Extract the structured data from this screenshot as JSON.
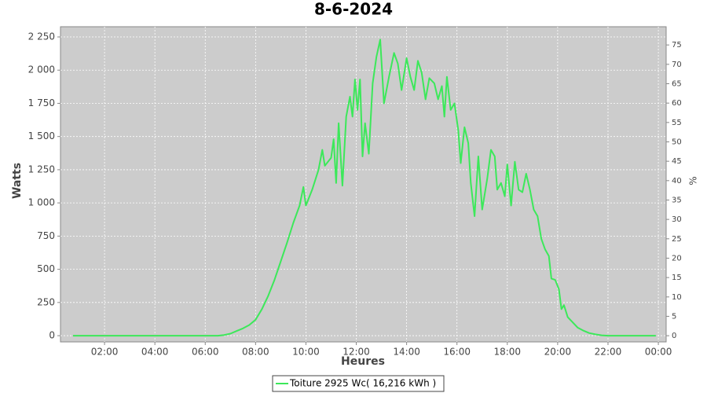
{
  "chart_data": {
    "type": "line",
    "title": "8-6-2024",
    "xlabel": "Heures",
    "ylabel": "Watts",
    "y2label": "%",
    "xlim": [
      0.25,
      24.31
    ],
    "xticks": [
      {
        "value": 2,
        "label": "02:00"
      },
      {
        "value": 4,
        "label": "04:00"
      },
      {
        "value": 6,
        "label": "06:00"
      },
      {
        "value": 8,
        "label": "08:00"
      },
      {
        "value": 10,
        "label": "10:00"
      },
      {
        "value": 12,
        "label": "12:00"
      },
      {
        "value": 14,
        "label": "14:00"
      },
      {
        "value": 16,
        "label": "16:00"
      },
      {
        "value": 18,
        "label": "18:00"
      },
      {
        "value": 20,
        "label": "20:00"
      },
      {
        "value": 22,
        "label": "22:00"
      },
      {
        "value": 24,
        "label": "00:00"
      }
    ],
    "ylim": [
      -47,
      2327
    ],
    "yticks": [
      0,
      250,
      500,
      750,
      {
        "value": 1000,
        "label": "1 000"
      },
      {
        "value": 1250,
        "label": "1 250"
      },
      {
        "value": 1500,
        "label": "1 500"
      },
      {
        "value": 1750,
        "label": "1 750"
      },
      {
        "value": 2000,
        "label": "2 000"
      },
      {
        "value": 2250,
        "label": "2 250"
      }
    ],
    "y2lim": [
      -1.6,
      79.7
    ],
    "y2ticks": [
      0,
      5,
      10,
      15,
      20,
      25,
      30,
      35,
      40,
      45,
      50,
      55,
      60,
      65,
      70,
      75
    ],
    "grid": true,
    "background": "#cccccc",
    "x": [
      0.75,
      2,
      4,
      6,
      6.5,
      6.75,
      7.0,
      7.25,
      7.5,
      7.75,
      8.0,
      8.25,
      8.5,
      8.75,
      9.0,
      9.25,
      9.5,
      9.75,
      9.9,
      10.0,
      10.25,
      10.5,
      10.65,
      10.75,
      11.0,
      11.1,
      11.2,
      11.3,
      11.45,
      11.6,
      11.75,
      11.85,
      11.95,
      12.05,
      12.15,
      12.25,
      12.35,
      12.5,
      12.65,
      12.8,
      12.95,
      13.1,
      13.3,
      13.5,
      13.65,
      13.8,
      14.0,
      14.15,
      14.3,
      14.45,
      14.6,
      14.75,
      14.9,
      15.1,
      15.25,
      15.4,
      15.5,
      15.6,
      15.75,
      15.9,
      16.05,
      16.15,
      16.3,
      16.45,
      16.55,
      16.7,
      16.85,
      17.0,
      17.2,
      17.35,
      17.5,
      17.6,
      17.75,
      17.9,
      18.0,
      18.15,
      18.3,
      18.45,
      18.6,
      18.75,
      18.9,
      19.05,
      19.2,
      19.35,
      19.5,
      19.65,
      19.75,
      19.9,
      20.05,
      20.15,
      20.25,
      20.4,
      20.6,
      20.8,
      21.0,
      21.25,
      21.5,
      21.75,
      22.0,
      22.5,
      23.9
    ],
    "series": [
      {
        "name": "Toiture 2925 Wc( 16,216 kWh )",
        "color": "#3ce85a",
        "values": [
          0,
          0,
          0,
          0,
          0,
          5,
          15,
          35,
          55,
          80,
          120,
          200,
          300,
          420,
          560,
          700,
          850,
          980,
          1120,
          980,
          1100,
          1250,
          1400,
          1280,
          1340,
          1480,
          1150,
          1600,
          1130,
          1650,
          1800,
          1650,
          1930,
          1700,
          1930,
          1350,
          1600,
          1370,
          1900,
          2100,
          2230,
          1750,
          1950,
          2130,
          2050,
          1850,
          2090,
          1950,
          1850,
          2070,
          1980,
          1780,
          1940,
          1900,
          1780,
          1880,
          1650,
          1950,
          1700,
          1750,
          1550,
          1300,
          1570,
          1450,
          1150,
          900,
          1350,
          950,
          1180,
          1400,
          1350,
          1100,
          1150,
          1050,
          1290,
          980,
          1310,
          1100,
          1080,
          1220,
          1100,
          950,
          900,
          730,
          650,
          600,
          430,
          420,
          350,
          200,
          230,
          140,
          100,
          60,
          40,
          20,
          10,
          3,
          0,
          0,
          0
        ]
      }
    ]
  }
}
